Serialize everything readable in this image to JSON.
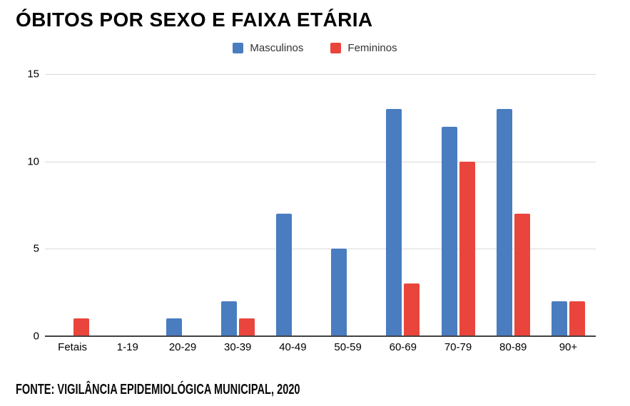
{
  "header": {
    "title": "ÓBITOS POR SEXO E FAIXA ETÁRIA"
  },
  "footer": {
    "source": "FONTE: VIGILÂNCIA EPIDEMIOLÓGICA MUNICIPAL, 2020"
  },
  "chart_data": {
    "type": "bar",
    "title": "ÓBITOS POR SEXO E FAIXA ETÁRIA",
    "categories": [
      "Fetais",
      "1-19",
      "20-29",
      "30-39",
      "40-49",
      "50-59",
      "60-69",
      "70-79",
      "80-89",
      "90+"
    ],
    "series": [
      {
        "name": "Masculinos",
        "color": "#4A7CC0",
        "values": [
          0,
          0,
          1,
          2,
          7,
          5,
          13,
          12,
          13,
          2
        ]
      },
      {
        "name": "Femininos",
        "color": "#EA453C",
        "values": [
          1,
          0,
          0,
          1,
          0,
          0,
          3,
          10,
          7,
          2
        ]
      }
    ],
    "xlabel": "",
    "ylabel": "",
    "ylim": [
      0,
      15
    ],
    "yticks": [
      0,
      5,
      10,
      15
    ],
    "grid": true,
    "legend_position": "top",
    "gridline_color": "#d9d9d9",
    "baseline_color": "#424242"
  }
}
